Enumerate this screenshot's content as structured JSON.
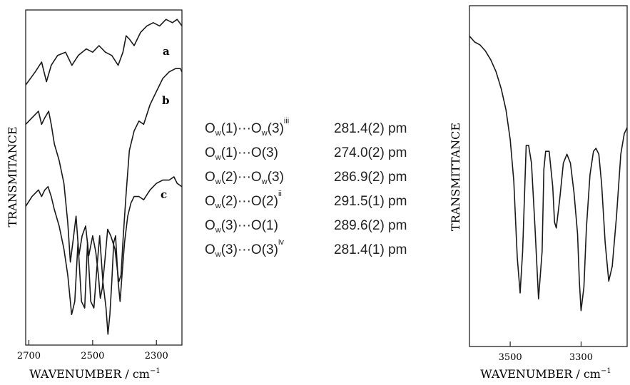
{
  "left_chart": {
    "ylabel": "TRANSMITANCE",
    "xlabel": "WAVENUMBER / cm",
    "xlabel_sup": "−1",
    "ticks": [
      "2700",
      "2500",
      "2300"
    ],
    "trace_labels": [
      "a",
      "b",
      "c"
    ]
  },
  "right_chart": {
    "ylabel": "TRANSMITTANCE",
    "xlabel": "WAVENUMBER / cm",
    "xlabel_sup": "−1",
    "ticks": [
      "3500",
      "3300"
    ]
  },
  "table": {
    "rows": [
      {
        "p1": "O",
        "s1": "w",
        "m1": "(1)···O",
        "s2": "w",
        "m2": "(3)",
        "sup": "iii",
        "value": "281.4(2) pm"
      },
      {
        "p1": "O",
        "s1": "w",
        "m1": "(1)···O(3)",
        "s2": "",
        "m2": "",
        "sup": "",
        "value": "274.0(2) pm"
      },
      {
        "p1": "O",
        "s1": "w",
        "m1": "(2)···O",
        "s2": "w",
        "m2": "(3)",
        "sup": "",
        "value": "286.9(2) pm"
      },
      {
        "p1": "O",
        "s1": "w",
        "m1": "(2)···O(2)",
        "s2": "",
        "m2": "",
        "sup": "ii",
        "value": "291.5(1) pm"
      },
      {
        "p1": "O",
        "s1": "w",
        "m1": "(3)···O(1)",
        "s2": "",
        "m2": "",
        "sup": "",
        "value": "289.6(2) pm"
      },
      {
        "p1": "O",
        "s1": "w",
        "m1": "(3)···O(3)",
        "s2": "",
        "m2": "",
        "sup": "iv",
        "value": "281.4(1) pm"
      }
    ]
  },
  "chart_data": [
    {
      "type": "line",
      "xlabel": "WAVENUMBER / cm⁻¹",
      "ylabel": "TRANSMITANCE",
      "xlim": [
        2710,
        2220
      ],
      "x_reversed": true,
      "y_units": "relative transmittance (arbitrary, stacked traces)",
      "grid": false,
      "series": [
        {
          "name": "a",
          "x": [
            2710,
            2680,
            2660,
            2645,
            2630,
            2610,
            2585,
            2565,
            2545,
            2520,
            2500,
            2480,
            2460,
            2440,
            2420,
            2405,
            2395,
            2385,
            2370,
            2350,
            2330,
            2310,
            2290,
            2270,
            2250,
            2235,
            2220
          ],
          "y": [
            0.78,
            0.82,
            0.85,
            0.79,
            0.84,
            0.87,
            0.88,
            0.84,
            0.87,
            0.89,
            0.88,
            0.9,
            0.88,
            0.87,
            0.84,
            0.88,
            0.93,
            0.92,
            0.9,
            0.94,
            0.96,
            0.97,
            0.96,
            0.98,
            0.97,
            0.98,
            0.96
          ]
        },
        {
          "name": "b",
          "x": [
            2710,
            2690,
            2670,
            2660,
            2650,
            2638,
            2630,
            2620,
            2605,
            2590,
            2578,
            2570,
            2562,
            2552,
            2543,
            2533,
            2522,
            2512,
            2500,
            2490,
            2482,
            2476,
            2470,
            2462,
            2453,
            2443,
            2430,
            2418,
            2411,
            2404,
            2395,
            2385,
            2370,
            2355,
            2340,
            2320,
            2300,
            2280,
            2260,
            2240,
            2225,
            2220
          ],
          "y": [
            0.66,
            0.68,
            0.7,
            0.66,
            0.68,
            0.7,
            0.66,
            0.6,
            0.55,
            0.48,
            0.36,
            0.24,
            0.3,
            0.38,
            0.26,
            0.32,
            0.35,
            0.26,
            0.32,
            0.27,
            0.2,
            0.13,
            0.16,
            0.24,
            0.34,
            0.32,
            0.28,
            0.18,
            0.2,
            0.32,
            0.45,
            0.58,
            0.64,
            0.67,
            0.66,
            0.72,
            0.76,
            0.8,
            0.82,
            0.83,
            0.83,
            0.82
          ]
        },
        {
          "name": "c",
          "x": [
            2710,
            2690,
            2670,
            2660,
            2650,
            2640,
            2630,
            2620,
            2605,
            2590,
            2578,
            2566,
            2556,
            2546,
            2535,
            2525,
            2516,
            2506,
            2496,
            2487,
            2478,
            2468,
            2458,
            2452,
            2446,
            2440,
            2434,
            2428,
            2420,
            2414,
            2408,
            2400,
            2390,
            2380,
            2370,
            2355,
            2340,
            2320,
            2300,
            2280,
            2260,
            2245,
            2235,
            2220
          ],
          "y": [
            0.41,
            0.44,
            0.46,
            0.44,
            0.46,
            0.47,
            0.44,
            0.4,
            0.35,
            0.28,
            0.2,
            0.08,
            0.12,
            0.3,
            0.12,
            0.1,
            0.3,
            0.12,
            0.1,
            0.22,
            0.32,
            0.18,
            0.1,
            0.02,
            0.08,
            0.18,
            0.3,
            0.32,
            0.18,
            0.12,
            0.2,
            0.3,
            0.38,
            0.42,
            0.44,
            0.44,
            0.43,
            0.46,
            0.48,
            0.49,
            0.49,
            0.5,
            0.48,
            0.47
          ]
        }
      ],
      "annotations": [
        "a",
        "b",
        "c"
      ]
    },
    {
      "type": "line",
      "xlabel": "WAVENUMBER / cm⁻¹",
      "ylabel": "TRANSMITTANCE",
      "xlim": [
        3615,
        3170
      ],
      "x_reversed": true,
      "y_units": "relative transmittance (arbitrary)",
      "grid": false,
      "series": [
        {
          "x": [
            3615,
            3600,
            3585,
            3570,
            3555,
            3540,
            3525,
            3512,
            3500,
            3490,
            3480,
            3472,
            3465,
            3455,
            3448,
            3440,
            3430,
            3420,
            3410,
            3405,
            3400,
            3390,
            3380,
            3375,
            3370,
            3360,
            3350,
            3340,
            3330,
            3320,
            3310,
            3305,
            3300,
            3292,
            3285,
            3275,
            3265,
            3258,
            3250,
            3242,
            3232,
            3222,
            3212,
            3200,
            3188,
            3178,
            3170
          ],
          "y": [
            0.95,
            0.93,
            0.92,
            0.9,
            0.87,
            0.83,
            0.77,
            0.7,
            0.6,
            0.46,
            0.2,
            0.08,
            0.22,
            0.58,
            0.58,
            0.52,
            0.3,
            0.06,
            0.22,
            0.5,
            0.56,
            0.56,
            0.44,
            0.32,
            0.3,
            0.4,
            0.52,
            0.55,
            0.52,
            0.42,
            0.28,
            0.12,
            0.02,
            0.1,
            0.3,
            0.48,
            0.56,
            0.57,
            0.55,
            0.45,
            0.25,
            0.12,
            0.17,
            0.34,
            0.55,
            0.62,
            0.64
          ]
        }
      ]
    }
  ]
}
